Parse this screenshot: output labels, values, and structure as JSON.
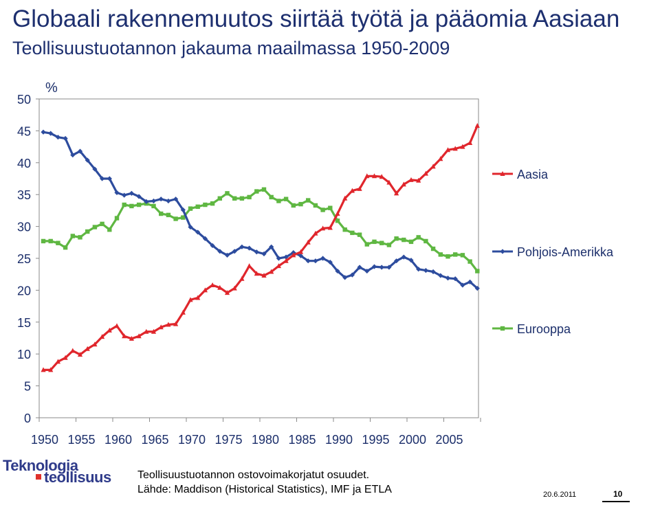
{
  "header": {
    "title": "Globaali rakennemuutos siirtää työtä ja pääomia Aasiaan",
    "subtitle": "Teollisuustuotannon jakauma maailmassa 1950-2009"
  },
  "chart_data": {
    "type": "line",
    "title": "",
    "ylabel": "%",
    "xlabel": "",
    "xlim": [
      1950,
      2009
    ],
    "ylim": [
      0,
      50
    ],
    "yticks": [
      0,
      5,
      10,
      15,
      20,
      25,
      30,
      35,
      40,
      45,
      50
    ],
    "xticks": [
      1950,
      1955,
      1960,
      1965,
      1970,
      1975,
      1980,
      1985,
      1990,
      1995,
      2000,
      2005
    ],
    "grid": false,
    "legend_position": "right",
    "x": [
      1950,
      1951,
      1952,
      1953,
      1954,
      1955,
      1956,
      1957,
      1958,
      1959,
      1960,
      1961,
      1962,
      1963,
      1964,
      1965,
      1966,
      1967,
      1968,
      1969,
      1970,
      1971,
      1972,
      1973,
      1974,
      1975,
      1976,
      1977,
      1978,
      1979,
      1980,
      1981,
      1982,
      1983,
      1984,
      1985,
      1986,
      1987,
      1988,
      1989,
      1990,
      1991,
      1992,
      1993,
      1994,
      1995,
      1996,
      1997,
      1998,
      1999,
      2000,
      2001,
      2002,
      2003,
      2004,
      2005,
      2006,
      2007,
      2008,
      2009
    ],
    "series": [
      {
        "name": "Aasia",
        "color": "#e0262c",
        "marker": "triangle",
        "values": [
          7.5,
          7.5,
          8.8,
          9.4,
          10.5,
          9.9,
          10.8,
          11.5,
          12.7,
          13.7,
          14.4,
          12.8,
          12.4,
          12.8,
          13.5,
          13.5,
          14.2,
          14.6,
          14.7,
          16.5,
          18.5,
          18.8,
          20.0,
          20.8,
          20.4,
          19.6,
          20.3,
          21.8,
          23.8,
          22.6,
          22.3,
          22.9,
          23.8,
          24.6,
          25.5,
          26.0,
          27.5,
          28.9,
          29.7,
          29.8,
          32.0,
          34.4,
          35.6,
          35.9,
          37.9,
          37.9,
          37.8,
          36.9,
          35.2,
          36.6,
          37.3,
          37.2,
          38.3,
          39.4,
          40.6,
          42.0,
          42.2,
          42.5,
          43.1,
          45.8
        ]
      },
      {
        "name": "Pohjois-Amerikka",
        "color": "#2d4c9e",
        "marker": "diamond",
        "values": [
          44.8,
          44.6,
          44.0,
          43.8,
          41.2,
          41.8,
          40.4,
          39.0,
          37.5,
          37.5,
          35.3,
          34.9,
          35.2,
          34.7,
          33.9,
          34.0,
          34.3,
          34.0,
          34.3,
          32.6,
          29.9,
          29.1,
          28.1,
          27.0,
          26.1,
          25.5,
          26.1,
          26.8,
          26.6,
          26.0,
          25.7,
          26.8,
          25.0,
          25.2,
          25.9,
          25.4,
          24.6,
          24.6,
          25.0,
          24.4,
          23.0,
          22.0,
          22.4,
          23.6,
          23.0,
          23.7,
          23.6,
          23.6,
          24.6,
          25.2,
          24.7,
          23.3,
          23.1,
          22.9,
          22.3,
          21.9,
          21.8,
          20.8,
          21.3,
          20.3
        ]
      },
      {
        "name": "Eurooppa",
        "color": "#5fb742",
        "marker": "square",
        "values": [
          27.7,
          27.7,
          27.4,
          26.7,
          28.5,
          28.3,
          29.2,
          29.9,
          30.4,
          29.5,
          31.3,
          33.4,
          33.2,
          33.4,
          33.6,
          33.2,
          32.0,
          31.8,
          31.2,
          31.4,
          32.8,
          33.1,
          33.4,
          33.6,
          34.4,
          35.2,
          34.4,
          34.4,
          34.6,
          35.5,
          35.8,
          34.6,
          34.0,
          34.3,
          33.3,
          33.5,
          34.1,
          33.3,
          32.6,
          32.9,
          30.9,
          29.5,
          29.0,
          28.7,
          27.2,
          27.6,
          27.4,
          27.1,
          28.1,
          27.9,
          27.6,
          28.3,
          27.7,
          26.5,
          25.6,
          25.3,
          25.6,
          25.5,
          24.5,
          23.0
        ]
      }
    ]
  },
  "logo": {
    "line1": "Teknologia",
    "line2": "teollisuus"
  },
  "footer": {
    "note": "Teollisuustuotannon ostovoimakorjatut osuudet.",
    "source": "Lähde: Maddison (Historical Statistics), IMF ja ETLA",
    "date": "20.6.2011",
    "page": "10"
  }
}
